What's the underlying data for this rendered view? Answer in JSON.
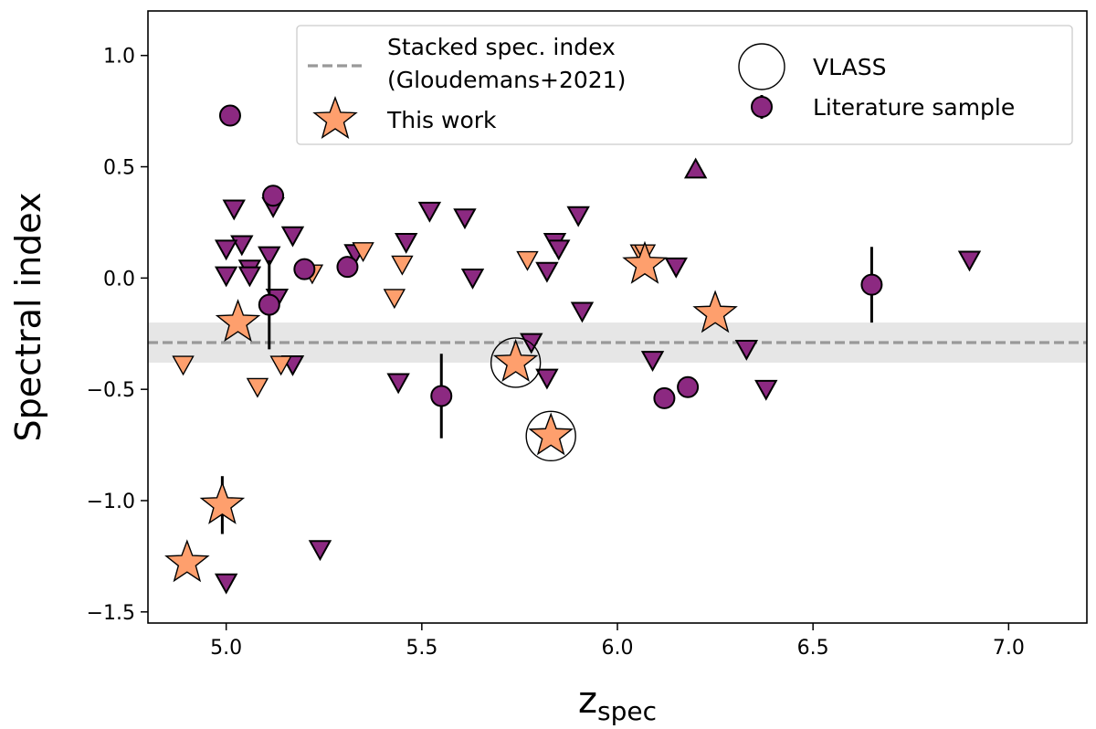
{
  "chart_data": {
    "type": "scatter",
    "xlabel": "z",
    "xlabel_sub": "spec",
    "ylabel": "Spectral index",
    "xlim": [
      4.8,
      7.2
    ],
    "ylim": [
      -1.55,
      1.2
    ],
    "xticks": [
      5.0,
      5.5,
      6.0,
      6.5,
      7.0
    ],
    "xtick_labels": [
      "5.0",
      "5.5",
      "6.0",
      "6.5",
      "7.0"
    ],
    "yticks": [
      -1.5,
      -1.0,
      -0.5,
      0.0,
      0.5,
      1.0
    ],
    "ytick_labels": [
      "−1.5",
      "−1.0",
      "−0.5",
      "0.0",
      "0.5",
      "1.0"
    ],
    "legend_position": "top-right",
    "colors": {
      "literature": "#8c2981",
      "this_work": "#fe9f6d",
      "stacked_line": "#999999",
      "stacked_band": "#e6e6e6"
    },
    "stacked_index": {
      "label_line1": "Stacked spec. index",
      "label_line2": "(Gloudemans+2021)",
      "value": -0.29,
      "band": [
        -0.38,
        -0.2
      ]
    },
    "legend": {
      "stacked": "Stacked spec. index",
      "stacked_ref": "(Gloudemans+2021)",
      "this_work": "This work",
      "vlass": "VLASS",
      "literature": "Literature sample"
    },
    "series": [
      {
        "name": "Literature sample",
        "marker": "circle",
        "points": [
          {
            "x": 5.01,
            "y": 0.73
          },
          {
            "x": 5.12,
            "y": 0.37
          },
          {
            "x": 5.11,
            "y": -0.12,
            "yerr": 0.2
          },
          {
            "x": 5.2,
            "y": 0.04
          },
          {
            "x": 5.31,
            "y": 0.05
          },
          {
            "x": 5.55,
            "y": -0.53,
            "yerr": 0.19
          },
          {
            "x": 6.12,
            "y": -0.54
          },
          {
            "x": 6.18,
            "y": -0.49
          },
          {
            "x": 6.65,
            "y": -0.03,
            "yerr": 0.17
          }
        ]
      },
      {
        "name": "Literature sample (upper limits)",
        "marker": "triangle-down",
        "points": [
          {
            "x": 5.02,
            "y": 0.31
          },
          {
            "x": 5.04,
            "y": 0.15
          },
          {
            "x": 5.0,
            "y": 0.13
          },
          {
            "x": 5.0,
            "y": 0.01
          },
          {
            "x": 5.06,
            "y": 0.04
          },
          {
            "x": 5.06,
            "y": 0.01
          },
          {
            "x": 5.11,
            "y": 0.1
          },
          {
            "x": 5.12,
            "y": 0.32
          },
          {
            "x": 5.17,
            "y": 0.19
          },
          {
            "x": 5.13,
            "y": -0.09
          },
          {
            "x": 5.17,
            "y": -0.39
          },
          {
            "x": 5.33,
            "y": 0.11
          },
          {
            "x": 5.46,
            "y": 0.16
          },
          {
            "x": 5.52,
            "y": 0.3
          },
          {
            "x": 5.61,
            "y": 0.27
          },
          {
            "x": 5.63,
            "y": 0.0
          },
          {
            "x": 5.44,
            "y": -0.47
          },
          {
            "x": 5.78,
            "y": -0.29
          },
          {
            "x": 5.82,
            "y": -0.45
          },
          {
            "x": 5.82,
            "y": 0.03
          },
          {
            "x": 5.84,
            "y": 0.16
          },
          {
            "x": 5.85,
            "y": 0.13
          },
          {
            "x": 5.9,
            "y": 0.28
          },
          {
            "x": 5.91,
            "y": -0.15
          },
          {
            "x": 6.09,
            "y": -0.37
          },
          {
            "x": 6.15,
            "y": 0.05
          },
          {
            "x": 6.33,
            "y": -0.32
          },
          {
            "x": 6.38,
            "y": -0.5
          },
          {
            "x": 6.9,
            "y": 0.08
          },
          {
            "x": 5.24,
            "y": -1.22
          },
          {
            "x": 5.0,
            "y": -1.37
          }
        ]
      },
      {
        "name": "Literature sample (lower limits)",
        "marker": "triangle-up",
        "points": [
          {
            "x": 6.2,
            "y": 0.49
          }
        ]
      },
      {
        "name": "This work (upper limits)",
        "marker": "triangle-down",
        "points": [
          {
            "x": 4.89,
            "y": -0.39
          },
          {
            "x": 5.08,
            "y": -0.49
          },
          {
            "x": 5.14,
            "y": -0.39
          },
          {
            "x": 5.22,
            "y": 0.02
          },
          {
            "x": 5.35,
            "y": 0.12
          },
          {
            "x": 5.43,
            "y": -0.09
          },
          {
            "x": 5.45,
            "y": 0.06
          },
          {
            "x": 5.77,
            "y": 0.08
          },
          {
            "x": 6.06,
            "y": 0.11
          },
          {
            "x": 6.07,
            "y": 0.11
          }
        ]
      },
      {
        "name": "This work",
        "marker": "star",
        "points": [
          {
            "x": 5.03,
            "y": -0.2
          },
          {
            "x": 4.99,
            "y": -1.02,
            "yerr": 0.13
          },
          {
            "x": 4.9,
            "y": -1.28
          },
          {
            "x": 5.74,
            "y": -0.38,
            "vlass": true
          },
          {
            "x": 5.83,
            "y": -0.71,
            "vlass": true
          },
          {
            "x": 6.07,
            "y": 0.06
          },
          {
            "x": 6.25,
            "y": -0.16
          }
        ]
      }
    ]
  }
}
